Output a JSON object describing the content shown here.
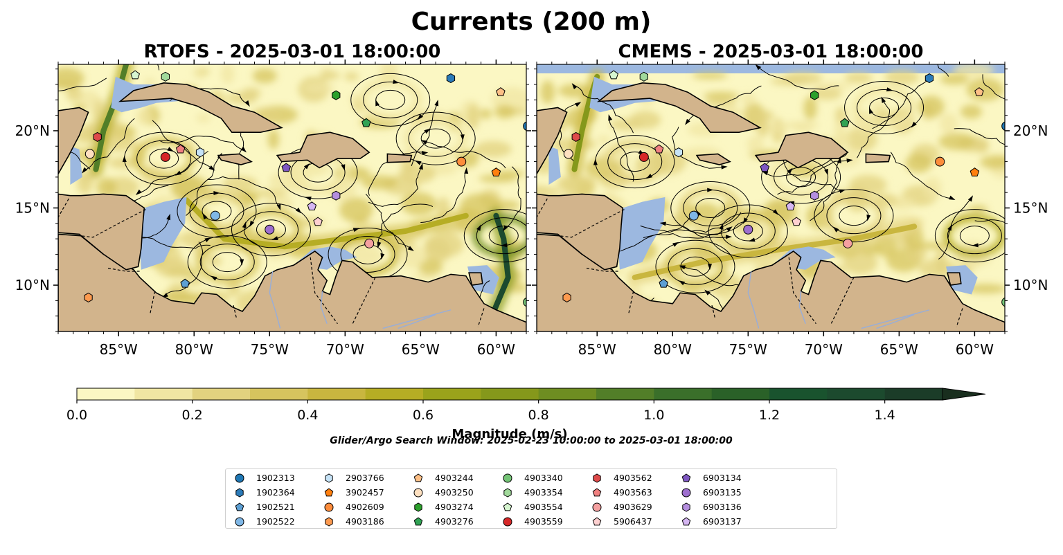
{
  "figure": {
    "title": "Currents (200 m)",
    "search_window": "Glider/Argo Search Window: 2025-02-23 10:00:00 to 2025-03-01 18:00:00"
  },
  "colors": {
    "land": "#d2b48c",
    "shallow_water": "#9cb8e0",
    "magnitude_scale": [
      "#fbf7c3",
      "#f0e6a3",
      "#e2d27f",
      "#d6c45e",
      "#c9b63f",
      "#b6ad24",
      "#9aa31b",
      "#85981b",
      "#6e8d21",
      "#527e28",
      "#3a6f2a",
      "#2a6128",
      "#19532e",
      "#1c4a2e",
      "#1b3c28",
      "#192e1e"
    ]
  },
  "chart_data": [
    {
      "type": "heatmap",
      "title": "RTOFS - 2025-03-01 18:00:00",
      "xlim": [
        -89,
        -58
      ],
      "ylim": [
        7,
        24.3
      ],
      "xticks": [
        -85,
        -80,
        -75,
        -70,
        -65,
        -60
      ],
      "xtick_labels": [
        "85°W",
        "80°W",
        "75°W",
        "70°W",
        "65°W",
        "60°W"
      ],
      "yticks": [
        10,
        15,
        20
      ],
      "ytick_labels": [
        "10°N",
        "15°N",
        "20°N"
      ],
      "ytick_side": "left",
      "eddies": [
        {
          "lon": -77.8,
          "lat": 11.5,
          "mag": 0.45
        },
        {
          "lon": -74.9,
          "lat": 13.6,
          "mag": 0.55
        },
        {
          "lon": -78.5,
          "lat": 14.8,
          "mag": 0.35
        },
        {
          "lon": -71.8,
          "lat": 17.3,
          "mag": 0.25
        },
        {
          "lon": -82.0,
          "lat": 18.2,
          "mag": 0.45
        },
        {
          "lon": -68.5,
          "lat": 12.0,
          "mag": 0.6
        },
        {
          "lon": -59.5,
          "lat": 13.2,
          "mag": 1.2
        },
        {
          "lon": -67.0,
          "lat": 22.0,
          "mag": 0.25
        },
        {
          "lon": -64.0,
          "lat": 19.5,
          "mag": 0.2
        }
      ],
      "jets": [
        {
          "points": [
            [
              -86.5,
              17.5
            ],
            [
              -86.0,
              20.0
            ],
            [
              -85.0,
              22.5
            ],
            [
              -84.5,
              24.3
            ]
          ],
          "mag": 0.9
        },
        {
          "points": [
            [
              -60.5,
              7.5
            ],
            [
              -59.2,
              10.5
            ],
            [
              -59.5,
              13.0
            ],
            [
              -60.0,
              14.5
            ]
          ],
          "mag": 1.3
        },
        {
          "points": [
            [
              -80.5,
              15.5
            ],
            [
              -78.0,
              13.0
            ],
            [
              -74.0,
              12.5
            ],
            [
              -70.0,
              13.0
            ],
            [
              -66.0,
              13.5
            ],
            [
              -62.0,
              14.5
            ]
          ],
          "mag": 0.6
        },
        {
          "points": [
            [
              -89.0,
              11.5
            ],
            [
              -87.5,
              10.0
            ],
            [
              -86.0,
              8.5
            ]
          ],
          "mag": 0.7
        }
      ]
    },
    {
      "type": "heatmap",
      "title": "CMEMS - 2025-03-01 18:00:00",
      "xlim": [
        -89,
        -58
      ],
      "ylim": [
        7,
        24.3
      ],
      "xticks": [
        -85,
        -80,
        -75,
        -70,
        -65,
        -60
      ],
      "xtick_labels": [
        "85°W",
        "80°W",
        "75°W",
        "70°W",
        "65°W",
        "60°W"
      ],
      "yticks": [
        10,
        15,
        20
      ],
      "ytick_labels": [
        "10°N",
        "15°N",
        "20°N"
      ],
      "ytick_side": "right",
      "eddies": [
        {
          "lon": -78.5,
          "lat": 11.2,
          "mag": 0.55
        },
        {
          "lon": -75.0,
          "lat": 13.5,
          "mag": 0.45
        },
        {
          "lon": -77.5,
          "lat": 15.0,
          "mag": 0.3
        },
        {
          "lon": -71.5,
          "lat": 17.0,
          "mag": 0.25
        },
        {
          "lon": -82.5,
          "lat": 18.0,
          "mag": 0.4
        },
        {
          "lon": -68.0,
          "lat": 14.5,
          "mag": 0.35
        },
        {
          "lon": -60.0,
          "lat": 13.2,
          "mag": 0.8
        },
        {
          "lon": -66.0,
          "lat": 21.5,
          "mag": 0.2
        }
      ],
      "jets": [
        {
          "points": [
            [
              -86.5,
              17.5
            ],
            [
              -86.0,
              20.0
            ],
            [
              -85.5,
              22.0
            ],
            [
              -85.0,
              23.5
            ]
          ],
          "mag": 0.75
        },
        {
          "points": [
            [
              -82.5,
              10.5
            ],
            [
              -78.0,
              11.5
            ],
            [
              -73.0,
              12.3
            ],
            [
              -68.0,
              13.0
            ],
            [
              -64.0,
              13.8
            ]
          ],
          "mag": 0.45
        },
        {
          "points": [
            [
              -89.0,
              11.0
            ],
            [
              -87.0,
              9.5
            ],
            [
              -86.0,
              8.0
            ]
          ],
          "mag": 0.5
        }
      ]
    }
  ],
  "colorbar": {
    "label": "Magnitude (m/s)",
    "vmin": 0.0,
    "vmax": 1.5,
    "extend": "max",
    "ticks": [
      0.0,
      0.2,
      0.4,
      0.6,
      0.8,
      1.0,
      1.2,
      1.4
    ],
    "tick_labels": [
      "0.0",
      "0.2",
      "0.4",
      "0.6",
      "0.8",
      "1.0",
      "1.2",
      "1.4"
    ]
  },
  "platforms": [
    {
      "id": "1902313",
      "color": "#1f77b4",
      "marker": "circle",
      "lon": -57.9,
      "lat": 20.3
    },
    {
      "id": "1902364",
      "color": "#2b7bb9",
      "marker": "hexagon",
      "lon": -63.0,
      "lat": 23.4
    },
    {
      "id": "1902521",
      "color": "#5d9fd3",
      "marker": "pentagon",
      "lon": -80.6,
      "lat": 10.1
    },
    {
      "id": "1902522",
      "color": "#7fb7e6",
      "marker": "circle",
      "lon": -78.6,
      "lat": 14.5
    },
    {
      "id": "2903766",
      "color": "#c6e3f7",
      "marker": "hexagon",
      "lon": -79.6,
      "lat": 18.6
    },
    {
      "id": "3902457",
      "color": "#ff7f0e",
      "marker": "pentagon",
      "lon": -60.0,
      "lat": 17.3
    },
    {
      "id": "4902609",
      "color": "#fd8d3c",
      "marker": "circle",
      "lon": -62.3,
      "lat": 18.0
    },
    {
      "id": "4903186",
      "color": "#fd9a4f",
      "marker": "hexagon",
      "lon": -87.0,
      "lat": 9.2
    },
    {
      "id": "4903244",
      "color": "#fdbf86",
      "marker": "pentagon",
      "lon": -59.7,
      "lat": 22.5
    },
    {
      "id": "4903250",
      "color": "#fee0c0",
      "marker": "circle",
      "lon": -86.9,
      "lat": 18.5
    },
    {
      "id": "4903274",
      "color": "#2ca02c",
      "marker": "hexagon",
      "lon": -70.6,
      "lat": 22.3
    },
    {
      "id": "4903276",
      "color": "#31a354",
      "marker": "pentagon",
      "lon": -68.6,
      "lat": 20.5
    },
    {
      "id": "4903340",
      "color": "#74c476",
      "marker": "circle",
      "lon": -57.9,
      "lat": 8.9
    },
    {
      "id": "4903354",
      "color": "#a1d99b",
      "marker": "hexagon",
      "lon": -81.9,
      "lat": 23.5
    },
    {
      "id": "4903554",
      "color": "#d6f5d0",
      "marker": "pentagon",
      "lon": -83.9,
      "lat": 23.6
    },
    {
      "id": "4903559",
      "color": "#d62728",
      "marker": "circle",
      "lon": -81.9,
      "lat": 18.3
    },
    {
      "id": "4903562",
      "color": "#de4a4a",
      "marker": "hexagon",
      "lon": -86.4,
      "lat": 19.6
    },
    {
      "id": "4903563",
      "color": "#f08080",
      "marker": "pentagon",
      "lon": -80.9,
      "lat": 18.8
    },
    {
      "id": "4903629",
      "color": "#f4a0a0",
      "marker": "circle",
      "lon": -68.4,
      "lat": 12.7
    },
    {
      "id": "5906437",
      "color": "#fdd0d0",
      "marker": "pentagon",
      "lon": -71.8,
      "lat": 14.1
    },
    {
      "id": "6903134",
      "color": "#7e57c2",
      "marker": "pentagon",
      "lon": -73.9,
      "lat": 17.6
    },
    {
      "id": "6903135",
      "color": "#9e6fcf",
      "marker": "circle",
      "lon": -75.0,
      "lat": 13.6
    },
    {
      "id": "6903136",
      "color": "#b48ede",
      "marker": "hexagon",
      "lon": -70.6,
      "lat": 15.8
    },
    {
      "id": "6903137",
      "color": "#d5b6f2",
      "marker": "pentagon",
      "lon": -72.2,
      "lat": 15.1
    }
  ]
}
